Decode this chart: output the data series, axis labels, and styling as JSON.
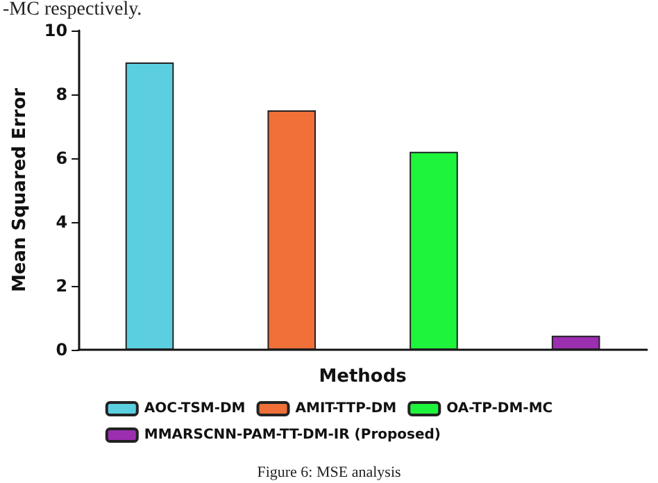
{
  "chart_data": {
    "type": "bar",
    "xlabel": "Methods",
    "ylabel": "Mean Squared Error",
    "categories": [
      null,
      null,
      null,
      null
    ],
    "series": [
      {
        "name": "AOC-TSM-DM",
        "color": "#5bcfe0",
        "values": [
          9.0,
          null,
          null,
          null
        ]
      },
      {
        "name": "AMIT-TTP-DM",
        "color": "#f07038",
        "values": [
          null,
          7.5,
          null,
          null
        ]
      },
      {
        "name": "OA-TP-DM-MC",
        "color": "#1ef43c",
        "values": [
          null,
          null,
          6.2,
          null
        ]
      },
      {
        "name": "MMARSCNN-PAM-TT-DM-IR (Proposed)",
        "color": "#9b2fb0",
        "values": [
          null,
          null,
          null,
          0.44
        ]
      }
    ],
    "ylim": [
      0,
      10
    ],
    "yticks": [
      0,
      2,
      4,
      6,
      8,
      10
    ],
    "grid": false,
    "legend": "bottom",
    "annotations": [
      "-MC respectively.",
      "Figure 6: MSE analysis"
    ]
  }
}
